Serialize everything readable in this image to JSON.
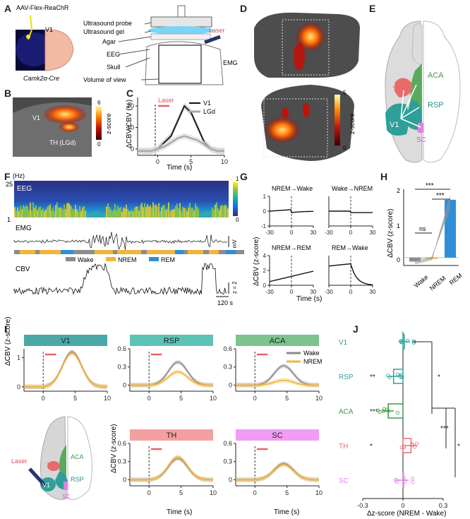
{
  "panels": {
    "A": "A",
    "B": "B",
    "C": "C",
    "D": "D",
    "E": "E",
    "F": "F",
    "G": "G",
    "H": "H",
    "I": "I",
    "J": "J"
  },
  "panelA": {
    "virus": "AAV-Flex-ReaChR",
    "region": "V1",
    "mouse": "Camk2α-Cre",
    "labels": [
      "Ultrasound probe",
      "Ultrasound gel",
      "Agar",
      "EEG",
      "Skull",
      "Volume of view",
      "EMG"
    ],
    "laser": "Laser"
  },
  "panelB": {
    "v1": "V1",
    "th": "TH (LGd)",
    "cbar_title": "z-score",
    "cbar_max": "6",
    "cbar_min": "0"
  },
  "panelC": {
    "ylabel": "ΔCBV/CBV (%)",
    "xlabel": "Time (s)",
    "laser": "Laser",
    "yticks": [
      "0",
      "10",
      "20"
    ],
    "xticks": [
      "0",
      "5",
      "10"
    ],
    "chart_data": {
      "type": "line",
      "x": [
        -3,
        -2,
        -1,
        0,
        1,
        2,
        3,
        4,
        5,
        6,
        7,
        8,
        9,
        10
      ],
      "series": [
        {
          "name": "V1",
          "values": [
            -1,
            -1,
            -1,
            0,
            3,
            6,
            13,
            20,
            17,
            10,
            3,
            0,
            -1,
            -1
          ]
        },
        {
          "name": "LGd",
          "values": [
            -1,
            -1,
            -1,
            0,
            1,
            3,
            5,
            6,
            5,
            4,
            2,
            0,
            -1,
            -1
          ]
        }
      ]
    }
  },
  "panelD": {
    "cbar_title": "z-score",
    "cbar_max": "5",
    "cbar_min": "0"
  },
  "panelE": {
    "aca": "ACA",
    "th": "TH",
    "rsp": "RSP",
    "v1": "V1",
    "sc": "SC"
  },
  "panelF": {
    "hz": "(Hz)",
    "ymax": "25",
    "ymin": "1",
    "eeg": "EEG",
    "emg": "EMG",
    "cbv": "CBV",
    "cbar_max": "1",
    "cbar_min": "0",
    "emg_scale": "2 mV",
    "cbv_scale": "z = 2",
    "time_scale": "120 s",
    "legend": [
      "Wake",
      "NREM",
      "REM"
    ],
    "state_colors": {
      "Wake": "#8c8c8c",
      "NREM": "#f2b43a",
      "REM": "#2f8fd6"
    }
  },
  "panelG": {
    "ylabel": "ΔCBV (z-score)",
    "xlabel": "Time (s)",
    "titles": [
      "NREM→Wake",
      "Wake→NREM",
      "NREM→REM",
      "REM→Wake"
    ],
    "xticks": [
      "-30",
      "0",
      "30"
    ],
    "yticks_top": [
      "1",
      "0",
      "-1"
    ],
    "yticks_bot": [
      "4",
      "2",
      "0"
    ]
  },
  "panelH": {
    "ylabel": "ΔCBV (z-score)",
    "yticks": [
      "2",
      "1",
      "0"
    ],
    "categories": [
      "Wake",
      "NREM",
      "REM"
    ],
    "sig": [
      "***",
      "***",
      "ns"
    ],
    "chart_data": {
      "type": "bar",
      "categories": [
        "Wake",
        "NREM",
        "REM"
      ],
      "values": [
        -0.15,
        -0.05,
        2.2
      ],
      "ylim": [
        -0.3,
        2.6
      ]
    }
  },
  "panelI": {
    "ylabel": "ΔCBV (z-score)",
    "xlabel": "Time (s)",
    "titles": [
      "V1",
      "RSP",
      "ACA",
      "TH",
      "SC"
    ],
    "legend": [
      "Wake",
      "NREM"
    ],
    "laser": "Laser",
    "brain": {
      "aca": "ACA",
      "th": "TH",
      "rsp": "RSP",
      "v1": "V1",
      "sc": "SC"
    },
    "yticks": {
      "V1": [
        "1",
        "0"
      ],
      "RSP": [
        "0.6",
        "0.3",
        "0"
      ],
      "ACA": [
        "0.6",
        "0.3",
        "0"
      ],
      "TH": [
        "0.6",
        "0.3",
        "0"
      ],
      "SC": [
        "0.6",
        "0.3",
        "0"
      ]
    },
    "xticks": [
      "0",
      "5",
      "10"
    ]
  },
  "panelJ": {
    "xlabel": "Δz-score (NREM - Wake)",
    "xticks": [
      "-0.3",
      "0",
      "0.3"
    ],
    "regions": [
      "V1",
      "RSP",
      "ACA",
      "TH",
      "SC"
    ],
    "region_sig": [
      "",
      "**",
      "***",
      "*",
      ""
    ],
    "bracket_sig": [
      "*",
      "***",
      "*"
    ],
    "chart_data": {
      "type": "bar",
      "categories": [
        "V1",
        "RSP",
        "ACA",
        "TH",
        "SC"
      ],
      "values": [
        0.01,
        -0.07,
        -0.11,
        0.06,
        0.0
      ],
      "xlim": [
        -0.3,
        0.3
      ]
    }
  }
}
